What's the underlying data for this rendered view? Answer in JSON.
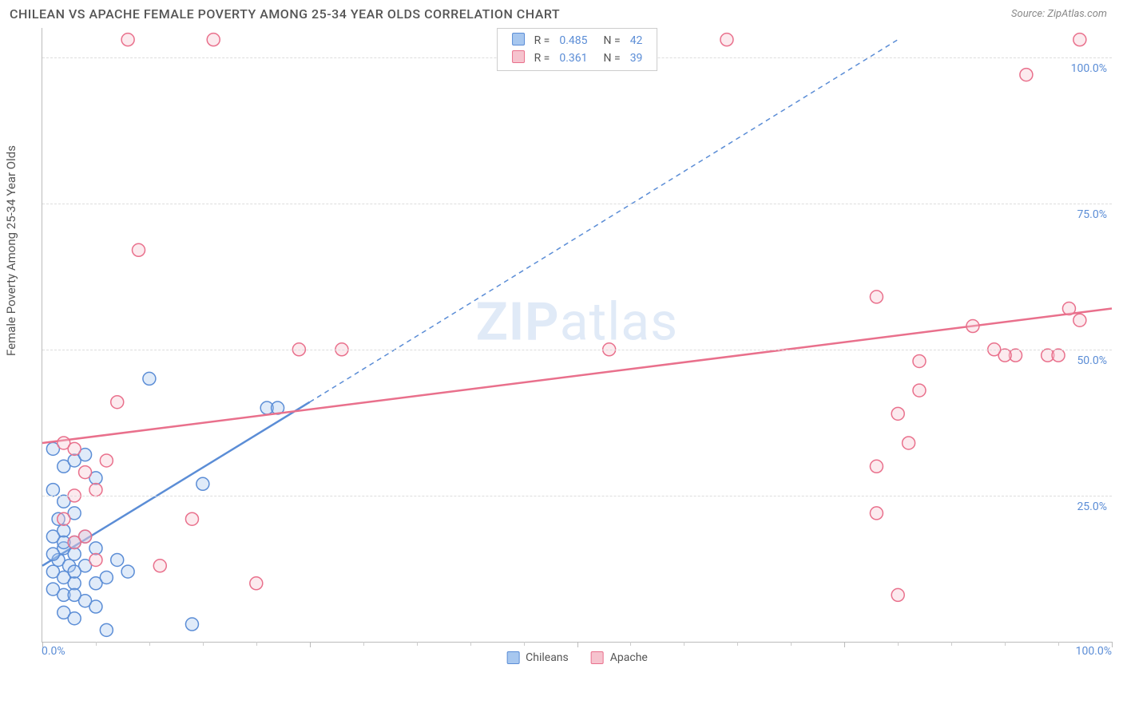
{
  "title": "CHILEAN VS APACHE FEMALE POVERTY AMONG 25-34 YEAR OLDS CORRELATION CHART",
  "source_label": "Source: ZipAtlas.com",
  "y_axis_title": "Female Poverty Among 25-34 Year Olds",
  "x_min_label": "0.0%",
  "x_max_label": "100.0%",
  "watermark_bold": "ZIP",
  "watermark_light": "atlas",
  "chart": {
    "type": "scatter",
    "xlim": [
      0,
      100
    ],
    "ylim": [
      0,
      105
    ],
    "y_ticks": [
      25,
      50,
      75,
      100
    ],
    "y_tick_labels": [
      "25.0%",
      "50.0%",
      "75.0%",
      "100.0%"
    ],
    "x_major_ticks": [
      0,
      25,
      50,
      75,
      100
    ],
    "x_minor_step": 5,
    "grid_color": "#dddddd",
    "axis_color": "#bbbbbb",
    "background_color": "#ffffff",
    "marker_radius": 8,
    "marker_fill_opacity": 0.35,
    "marker_stroke_width": 1.5,
    "trend_line_width": 2.5,
    "trend_dash": "6,5"
  },
  "series": [
    {
      "name": "Chileans",
      "color_fill": "#a7c7ef",
      "color_stroke": "#5b8dd6",
      "R": "0.485",
      "N": "42",
      "points": [
        [
          1,
          12
        ],
        [
          1.5,
          14
        ],
        [
          2,
          11
        ],
        [
          2,
          16
        ],
        [
          1,
          18
        ],
        [
          2.5,
          13
        ],
        [
          3,
          15
        ],
        [
          1,
          9
        ],
        [
          2,
          8
        ],
        [
          3,
          17
        ],
        [
          1.5,
          21
        ],
        [
          2,
          24
        ],
        [
          3,
          10
        ],
        [
          4,
          13
        ],
        [
          4,
          7
        ],
        [
          5,
          6
        ],
        [
          5,
          10
        ],
        [
          2,
          5
        ],
        [
          3,
          12
        ],
        [
          1,
          15
        ],
        [
          2,
          19
        ],
        [
          3,
          22
        ],
        [
          5,
          16
        ],
        [
          6,
          11
        ],
        [
          7,
          14
        ],
        [
          3,
          4
        ],
        [
          4,
          18
        ],
        [
          2,
          30
        ],
        [
          3,
          31
        ],
        [
          6,
          2
        ],
        [
          14,
          3
        ],
        [
          15,
          27
        ],
        [
          21,
          40
        ],
        [
          22,
          40
        ],
        [
          10,
          45
        ],
        [
          1,
          33
        ],
        [
          4,
          32
        ],
        [
          5,
          28
        ],
        [
          8,
          12
        ],
        [
          2,
          17
        ],
        [
          3,
          8
        ],
        [
          1,
          26
        ]
      ],
      "trend": {
        "x1": 0,
        "y1": 13,
        "x2": 25,
        "y2": 41,
        "ext_x2": 80,
        "ext_y2": 103
      }
    },
    {
      "name": "Apache",
      "color_fill": "#f6c3ce",
      "color_stroke": "#e9708c",
      "R": "0.361",
      "N": "39",
      "points": [
        [
          8,
          103
        ],
        [
          16,
          103
        ],
        [
          64,
          103
        ],
        [
          97,
          103
        ],
        [
          92,
          97
        ],
        [
          9,
          67
        ],
        [
          24,
          50
        ],
        [
          28,
          50
        ],
        [
          53,
          50
        ],
        [
          7,
          41
        ],
        [
          2,
          34
        ],
        [
          3,
          33
        ],
        [
          4,
          29
        ],
        [
          5,
          26
        ],
        [
          3,
          25
        ],
        [
          14,
          21
        ],
        [
          11,
          13
        ],
        [
          20,
          10
        ],
        [
          4,
          18
        ],
        [
          6,
          31
        ],
        [
          78,
          59
        ],
        [
          97,
          55
        ],
        [
          87,
          54
        ],
        [
          91,
          49
        ],
        [
          94,
          49
        ],
        [
          96,
          57
        ],
        [
          82,
          43
        ],
        [
          80,
          39
        ],
        [
          90,
          49
        ],
        [
          78,
          30
        ],
        [
          81,
          34
        ],
        [
          78,
          22
        ],
        [
          80,
          8
        ],
        [
          2,
          21
        ],
        [
          3,
          17
        ],
        [
          5,
          14
        ],
        [
          82,
          48
        ],
        [
          95,
          49
        ],
        [
          89,
          50
        ]
      ],
      "trend": {
        "x1": 0,
        "y1": 34,
        "x2": 100,
        "y2": 57
      }
    }
  ],
  "legend_top": {
    "r_label": "R =",
    "n_label": "N ="
  },
  "legend_bottom_labels": [
    "Chileans",
    "Apache"
  ]
}
